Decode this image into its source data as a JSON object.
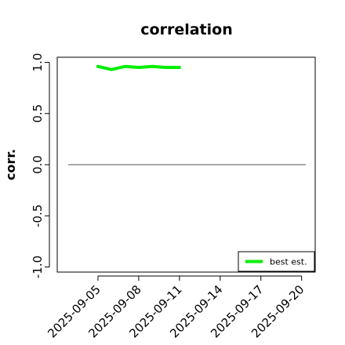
{
  "chart_data": {
    "type": "line",
    "title": "correlation",
    "ylabel": "corr.",
    "xlabel": "",
    "ylim": [
      -1.05,
      1.05
    ],
    "yticks": [
      -1.0,
      -0.5,
      0.0,
      0.5,
      1.0
    ],
    "ytick_labels": [
      "-1.0",
      "-0.5",
      "0.0",
      "0.5",
      "1.0"
    ],
    "x": [
      "2025-09-05",
      "2025-09-06",
      "2025-09-07",
      "2025-09-08",
      "2025-09-09",
      "2025-09-10",
      "2025-09-11"
    ],
    "xrange": [
      "2025-09-02",
      "2025-09-21"
    ],
    "xticks": [
      "2025-09-05",
      "2025-09-08",
      "2025-09-11",
      "2025-09-14",
      "2025-09-17",
      "2025-09-20"
    ],
    "highlight_tick": "2025-09-11",
    "series": [
      {
        "name": "best est.",
        "color": "#00ee00",
        "values": [
          0.96,
          0.93,
          0.96,
          0.95,
          0.96,
          0.95,
          0.95
        ]
      }
    ],
    "reference_line": {
      "y": 0.0,
      "color": "#555555"
    },
    "legend": "bottom-right",
    "grid": false,
    "colors": {
      "tick_highlight": "#228b22",
      "axis": "#000000"
    }
  }
}
